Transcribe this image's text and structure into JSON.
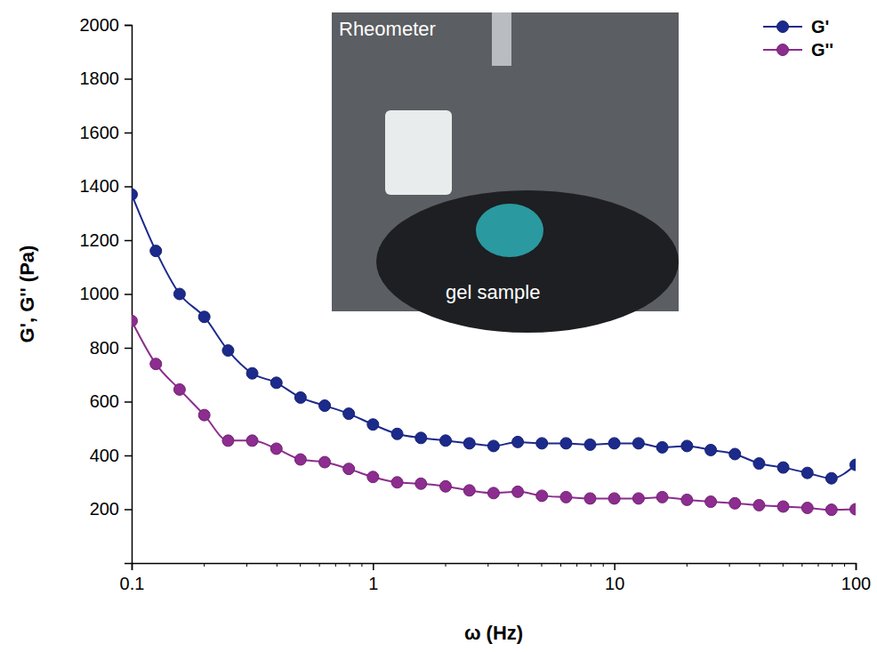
{
  "chart_data": {
    "type": "line",
    "x_label": "ω (Hz)",
    "y_label": "G', G'' (Pa)",
    "annotations": [
      "Rheometer",
      "gel sample"
    ],
    "log": "x",
    "legend": "top-right",
    "x": [
      0.1,
      0.126,
      0.158,
      0.2,
      0.251,
      0.316,
      0.398,
      0.501,
      0.631,
      0.794,
      1,
      1.26,
      1.58,
      2,
      2.51,
      3.16,
      3.98,
      5.01,
      6.31,
      7.94,
      10,
      12.6,
      15.8,
      20,
      25.1,
      31.6,
      39.8,
      50.1,
      63.1,
      79.4,
      100
    ],
    "xlim": [
      0.1,
      100
    ],
    "xticks": [
      0.1,
      1,
      10,
      100
    ],
    "ylim": [
      0,
      2000
    ],
    "yticks": [
      200,
      400,
      600,
      800,
      1000,
      1200,
      1400,
      1600,
      1800,
      2000
    ],
    "series": [
      {
        "name": "G'",
        "color": "#1c2a8c",
        "marker": "circle",
        "line_style": "solid",
        "values": [
          1370,
          1160,
          1000,
          915,
          790,
          705,
          670,
          615,
          585,
          555,
          515,
          480,
          465,
          455,
          445,
          435,
          450,
          445,
          445,
          440,
          445,
          445,
          430,
          435,
          420,
          405,
          370,
          355,
          335,
          315,
          365
        ]
      },
      {
        "name": "G''",
        "color": "#8c2d8f",
        "marker": "circle",
        "line_style": "solid",
        "values": [
          900,
          740,
          645,
          550,
          455,
          455,
          425,
          385,
          375,
          350,
          320,
          300,
          295,
          285,
          270,
          260,
          265,
          250,
          245,
          240,
          240,
          240,
          245,
          235,
          228,
          222,
          215,
          210,
          205,
          198,
          200
        ]
      }
    ]
  }
}
